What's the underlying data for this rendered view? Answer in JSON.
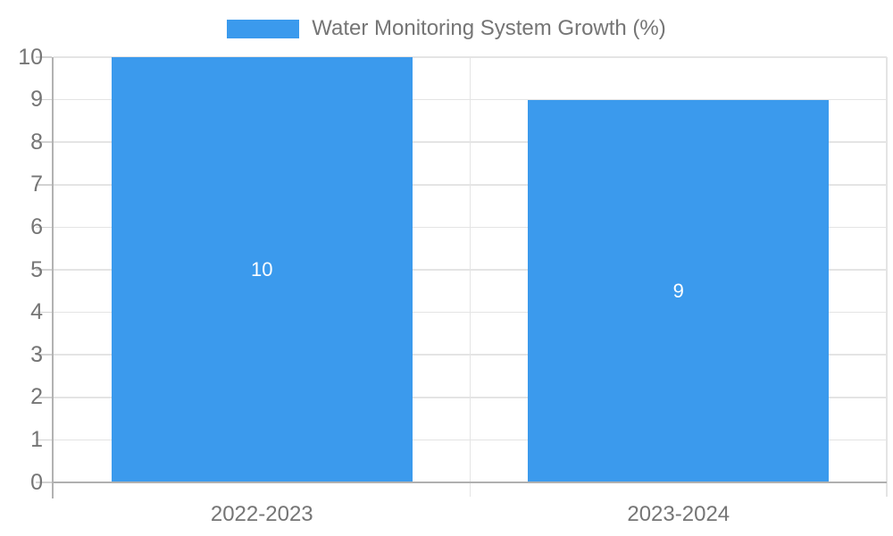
{
  "legend": {
    "label": "Water Monitoring System Growth (%)"
  },
  "colors": {
    "bar": "#3b9aed",
    "bar_label": "#ffffff",
    "axis_text": "#757575",
    "grid": "#e4e4e4",
    "axis_line": "#b2b2b2",
    "baseline": "#b0b0b0",
    "tick": "#d2d2d2",
    "background": "#ffffff"
  },
  "chart_data": {
    "type": "bar",
    "title": "Water Monitoring System Growth (%)",
    "categories": [
      "2022-2023",
      "2023-2024"
    ],
    "values": [
      10,
      9
    ],
    "bar_labels": [
      "10",
      "9"
    ],
    "xlabel": "",
    "ylabel": "",
    "ylim": [
      0,
      10
    ],
    "yticks": [
      0,
      1,
      2,
      3,
      4,
      5,
      6,
      7,
      8,
      9,
      10
    ],
    "grid": true,
    "legend_position": "top",
    "bar_width_ratio": 0.722,
    "value_label_position": "middle"
  }
}
